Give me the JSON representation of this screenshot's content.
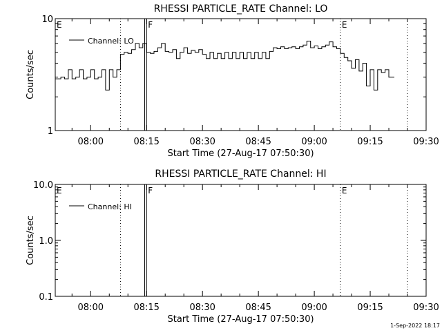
{
  "chart_data": [
    {
      "type": "line",
      "title": "RHESSI PARTICLE_RATE Channel: LO",
      "xlabel": "Start Time (27-Aug-17 07:50:30)",
      "ylabel": "Counts/sec",
      "y_scale": "log",
      "ylim": [
        1,
        10
      ],
      "yticks": [
        "1",
        "10"
      ],
      "xlim": [
        "07:50:30",
        "09:30"
      ],
      "xticks": [
        "08:00",
        "08:15",
        "08:30",
        "08:45",
        "09:00",
        "09:15",
        "09:30"
      ],
      "legend_position": "top-left",
      "markers": [
        {
          "label": "E",
          "time": "07:50:30"
        },
        {
          "label": "F",
          "time": "08:15"
        },
        {
          "label": "E",
          "time": "09:07"
        }
      ],
      "dotted_lines": [
        "08:08",
        "09:07",
        "09:25"
      ],
      "solid_lines": [
        "08:14:30",
        "08:15"
      ],
      "series": [
        {
          "name": "Channel: LO",
          "x": [
            "07:50:30",
            "07:52",
            "07:53",
            "07:54",
            "07:55",
            "07:56",
            "07:57",
            "07:58",
            "07:59",
            "08:00",
            "08:01",
            "08:02",
            "08:03",
            "08:04",
            "08:05",
            "08:06",
            "08:07",
            "08:08",
            "08:09",
            "08:10",
            "08:11",
            "08:12",
            "08:13",
            "08:14",
            "08:15",
            "08:16",
            "08:17",
            "08:18",
            "08:19",
            "08:20",
            "08:21",
            "08:22",
            "08:23",
            "08:24",
            "08:25",
            "08:26",
            "08:27",
            "08:28",
            "08:29",
            "08:30",
            "08:31",
            "08:32",
            "08:33",
            "08:34",
            "08:35",
            "08:36",
            "08:37",
            "08:38",
            "08:39",
            "08:40",
            "08:41",
            "08:42",
            "08:43",
            "08:44",
            "08:45",
            "08:46",
            "08:47",
            "08:48",
            "08:49",
            "08:50",
            "08:51",
            "08:52",
            "08:53",
            "08:54",
            "08:55",
            "08:56",
            "08:57",
            "08:58",
            "08:59",
            "09:00",
            "09:01",
            "09:02",
            "09:03",
            "09:04",
            "09:05",
            "09:06",
            "09:07",
            "09:08",
            "09:09",
            "09:10",
            "09:11",
            "09:12",
            "09:13",
            "09:14",
            "09:15",
            "09:16",
            "09:17",
            "09:18",
            "09:19",
            "09:20"
          ],
          "values": [
            2.9,
            3,
            2.9,
            3.5,
            2.9,
            3,
            3.5,
            2.9,
            3,
            3.5,
            2.9,
            3,
            3.5,
            2.3,
            3.5,
            3,
            3.5,
            4.8,
            5,
            4.9,
            5.3,
            6,
            5.5,
            6,
            5,
            4.9,
            5.1,
            5.5,
            6,
            5.1,
            5,
            5.3,
            4.4,
            5,
            5.5,
            4.9,
            5.2,
            5,
            5.3,
            4.8,
            4.4,
            5,
            4.4,
            4.9,
            4.4,
            5,
            4.4,
            5,
            4.4,
            5,
            4.4,
            5,
            4.4,
            5,
            4.4,
            5,
            4.4,
            5.1,
            5.5,
            5.4,
            5.6,
            5.4,
            5.5,
            5.6,
            5.4,
            5.6,
            5.8,
            6.3,
            5.5,
            5.7,
            5.4,
            5.6,
            5.8,
            6.2,
            5.6,
            5.4,
            4.9,
            4.5,
            4.2,
            3.6,
            4.3,
            3.4,
            4,
            2.5,
            3.5,
            2.3,
            3.5,
            3.3,
            3.5,
            3.0
          ]
        }
      ]
    },
    {
      "type": "line",
      "title": "RHESSI PARTICLE_RATE Channel: HI",
      "xlabel": "Start Time (27-Aug-17 07:50:30)",
      "ylabel": "Counts/sec",
      "y_scale": "log",
      "ylim": [
        0.1,
        10.0
      ],
      "yticks": [
        "0.1",
        "1.0",
        "10.0"
      ],
      "xlim": [
        "07:50:30",
        "09:30"
      ],
      "xticks": [
        "08:00",
        "08:15",
        "08:30",
        "08:45",
        "09:00",
        "09:15",
        "09:30"
      ],
      "legend_position": "top-left",
      "markers": [
        {
          "label": "E",
          "time": "07:50:30"
        },
        {
          "label": "F",
          "time": "08:15"
        },
        {
          "label": "E",
          "time": "09:07"
        }
      ],
      "dotted_lines": [
        "08:08",
        "09:07",
        "09:25"
      ],
      "solid_lines": [
        "08:14:30",
        "08:15"
      ],
      "series": [
        {
          "name": "Channel: HI",
          "x": [],
          "values": []
        }
      ]
    }
  ],
  "footer": {
    "timestamp": "1-Sep-2022 18:17"
  }
}
